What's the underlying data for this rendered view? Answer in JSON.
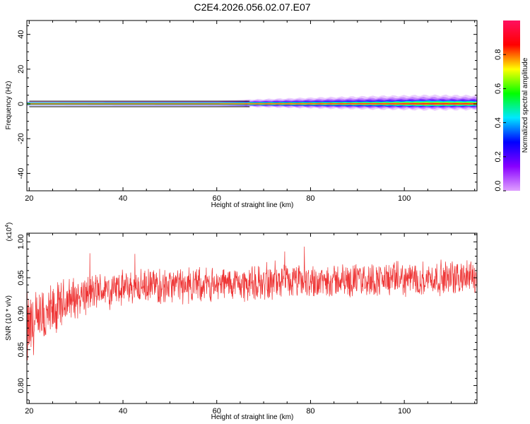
{
  "title": "C2E4.2026.056.02.07.E07",
  "chart_data": [
    {
      "type": "heatmap",
      "xlabel": "Height of straight line (km)",
      "ylabel": "Frequency (Hz)",
      "xlim": [
        19.5,
        115.5
      ],
      "ylim": [
        -50,
        48
      ],
      "xticks": [
        20,
        40,
        60,
        80,
        100
      ],
      "yticks": [
        40,
        20,
        0,
        -20,
        -40
      ],
      "colorbar": {
        "label": "Normalized spectral amplitude",
        "range": [
          0.0,
          1.0
        ],
        "ticks": [
          "0.0",
          "0.2",
          "0.4",
          "0.6",
          "0.8"
        ],
        "colors": [
          "#e0a0ff",
          "#8800ff",
          "#0000ff",
          "#00e8ff",
          "#00ff00",
          "#ffff00",
          "#ff0000",
          "#ff1060"
        ]
      },
      "band_center_hz": 0,
      "band_halfwidth_hz": [
        {
          "x": 20,
          "core": 0.8,
          "halo": 1.5
        },
        {
          "x": 60,
          "core": 0.8,
          "halo": 1.8
        },
        {
          "x": 68,
          "core": 0.9,
          "halo": 2.6
        },
        {
          "x": 80,
          "core": 1.0,
          "halo": 3.5
        },
        {
          "x": 95,
          "core": 1.3,
          "halo": 4.5
        },
        {
          "x": 105,
          "core": 1.8,
          "halo": 5.0
        },
        {
          "x": 115,
          "core": 1.6,
          "halo": 4.8
        }
      ]
    },
    {
      "type": "line",
      "xlabel": "Height of straight line (km)",
      "ylabel": "SNR (10 * v/v)",
      "yscale_label": "(x10^4)",
      "xlim": [
        19.5,
        115.5
      ],
      "ylim": [
        0.775,
        1.012
      ],
      "xticks": [
        20,
        40,
        60,
        80,
        100
      ],
      "yticks": [
        0.8,
        0.85,
        0.9,
        0.95,
        1.0
      ],
      "series": [
        {
          "color": "#ee3333",
          "trend": [
            {
              "x": 19.5,
              "y": 0.875
            },
            {
              "x": 22,
              "y": 0.882
            },
            {
              "x": 24,
              "y": 0.895
            },
            {
              "x": 26,
              "y": 0.905
            },
            {
              "x": 28,
              "y": 0.918
            },
            {
              "x": 31,
              "y": 0.925
            },
            {
              "x": 35,
              "y": 0.932
            },
            {
              "x": 40,
              "y": 0.936
            },
            {
              "x": 50,
              "y": 0.939
            },
            {
              "x": 60,
              "y": 0.941
            },
            {
              "x": 70,
              "y": 0.943
            },
            {
              "x": 80,
              "y": 0.945
            },
            {
              "x": 90,
              "y": 0.947
            },
            {
              "x": 100,
              "y": 0.948
            },
            {
              "x": 110,
              "y": 0.95
            },
            {
              "x": 115.5,
              "y": 0.952
            }
          ],
          "spread": [
            {
              "x": 19.5,
              "d": 0.06
            },
            {
              "x": 24,
              "d": 0.045
            },
            {
              "x": 30,
              "d": 0.03
            },
            {
              "x": 40,
              "d": 0.025
            },
            {
              "x": 115.5,
              "d": 0.025
            }
          ]
        }
      ]
    }
  ]
}
